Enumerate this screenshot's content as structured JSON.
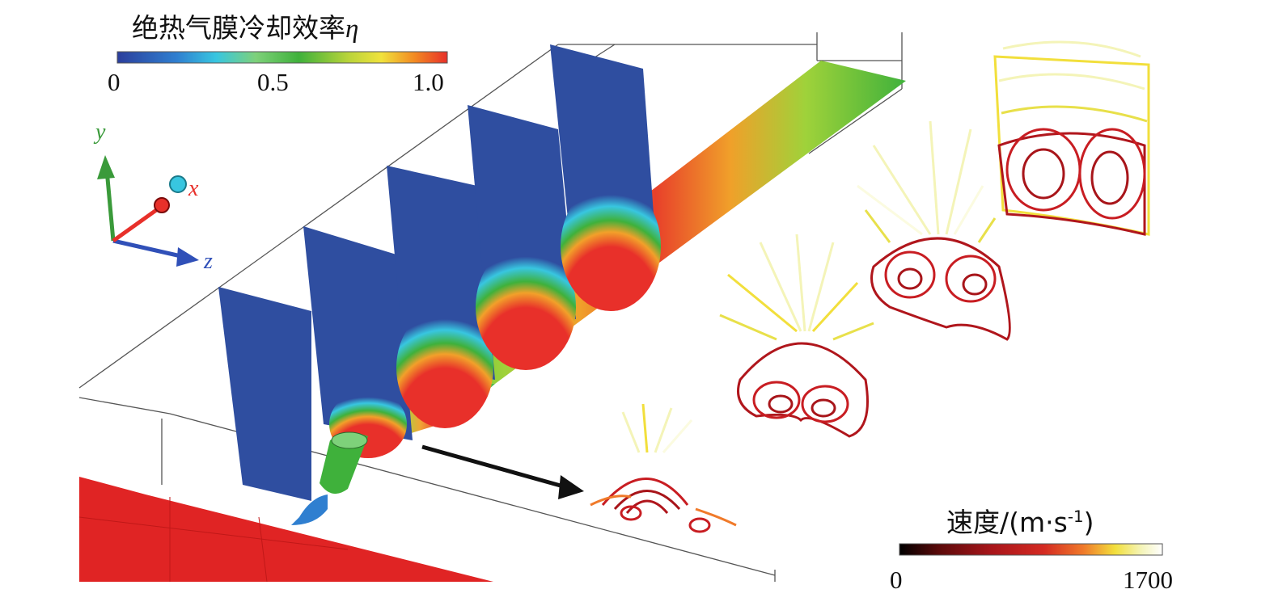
{
  "colorbar_eta": {
    "title": "绝热气膜冷却效率",
    "symbol": "η",
    "ticks": [
      "0",
      "0.5",
      "1.0"
    ],
    "colors": [
      "#2b3e9c",
      "#2f7fd0",
      "#38c6e0",
      "#7ed17a",
      "#3fb13b",
      "#b9d43a",
      "#f0e23c",
      "#f28a22",
      "#e8302a"
    ]
  },
  "colorbar_speed": {
    "title_prefix": "速度/(m·s",
    "exponent": "-1",
    "title_suffix": ")",
    "ticks": [
      "0",
      "1700"
    ],
    "colors": [
      "#000000",
      "#5b0a0a",
      "#a8151a",
      "#d42a22",
      "#f07a2a",
      "#f2df3c",
      "#f4f4b8",
      "#ffffff"
    ]
  },
  "axes": {
    "x_label": "x",
    "y_label": "y",
    "z_label": "z",
    "x_color": "#e8302a",
    "y_color": "#3a9a3a",
    "z_color": "#3050b8"
  },
  "field_colors": {
    "low": "#2f4ea0",
    "mid": "#3fb13b",
    "high": "#e8302a",
    "wall": "#e02424"
  }
}
